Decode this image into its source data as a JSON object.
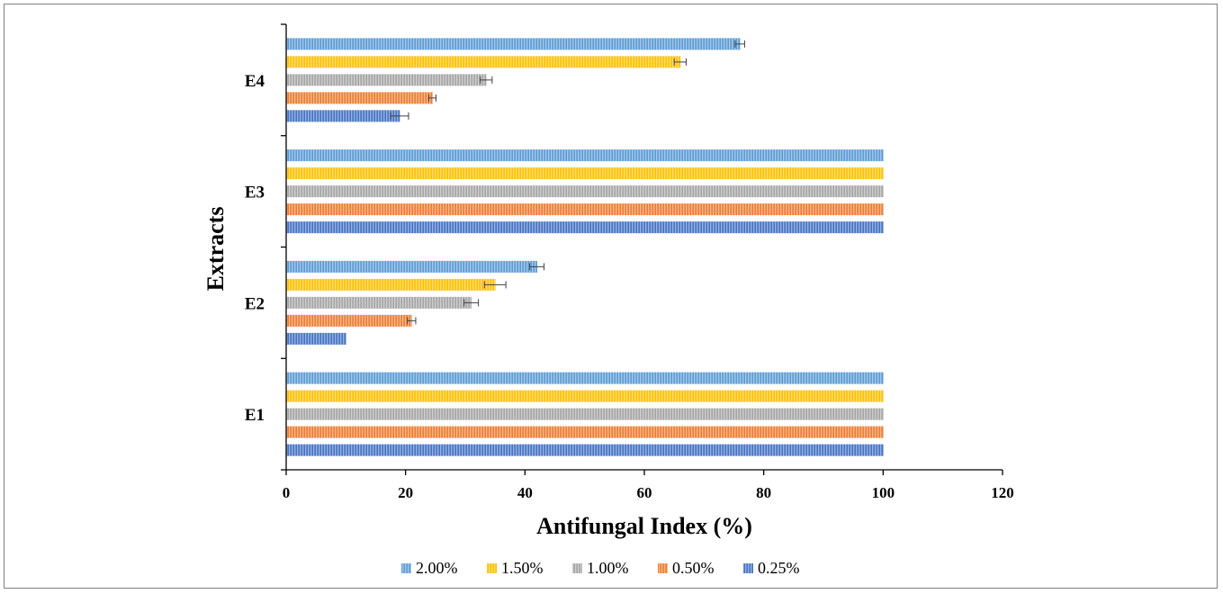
{
  "chart_data": {
    "type": "bar",
    "orientation": "horizontal",
    "categories": [
      "E1",
      "E2",
      "E3",
      "E4"
    ],
    "series": [
      {
        "name": "2.00%",
        "color": "#5b9bd5",
        "values": [
          100,
          42,
          100,
          76
        ],
        "errors": [
          0,
          1.2,
          0,
          0.8
        ]
      },
      {
        "name": "1.50%",
        "color": "#ffc000",
        "values": [
          100,
          35,
          100,
          66
        ],
        "errors": [
          0,
          1.8,
          0,
          1.0
        ]
      },
      {
        "name": "1.00%",
        "color": "#a5a5a5",
        "values": [
          100,
          31,
          100,
          33.5
        ],
        "errors": [
          0,
          1.2,
          0,
          1.0
        ]
      },
      {
        "name": "0.50%",
        "color": "#ed7d31",
        "values": [
          100,
          21,
          100,
          24.5
        ],
        "errors": [
          0,
          0.7,
          0,
          0.6
        ]
      },
      {
        "name": "0.25%",
        "color": "#4472c4",
        "values": [
          100,
          10,
          100,
          19
        ],
        "errors": [
          0,
          0,
          0,
          1.5
        ]
      }
    ],
    "xlabel": "Antifungal Index (%)",
    "ylabel": "Extracts",
    "xlim": [
      0,
      120
    ],
    "xticks": [
      "0",
      "20",
      "40",
      "60",
      "80",
      "100",
      "120"
    ],
    "grid": false,
    "legend_position": "bottom"
  }
}
